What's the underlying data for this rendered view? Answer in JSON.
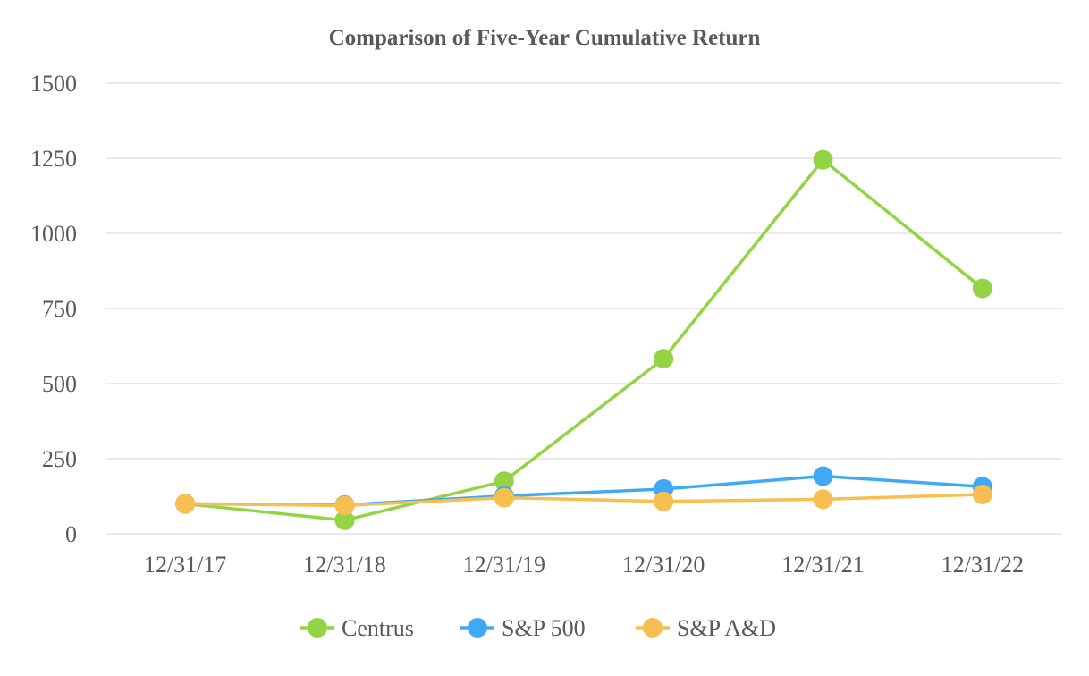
{
  "chart_data": {
    "type": "line",
    "title": "Comparison of Five-Year Cumulative Return",
    "xlabel": "",
    "ylabel": "",
    "categories": [
      "12/31/17",
      "12/31/18",
      "12/31/19",
      "12/31/20",
      "12/31/21",
      "12/31/22"
    ],
    "ylim": [
      0,
      1500
    ],
    "yticks": [
      "0",
      "250",
      "500",
      "750",
      "1000",
      "1250",
      "1500"
    ],
    "grid": true,
    "legend_position": "bottom",
    "series": [
      {
        "name": "Centrus",
        "color": "#92d444",
        "values": [
          100,
          45,
          175,
          583,
          1245,
          817
        ]
      },
      {
        "name": "S&P 500",
        "color": "#3fa9f5",
        "values": [
          100,
          96,
          126,
          149,
          192,
          157
        ]
      },
      {
        "name": "S&P A&D",
        "color": "#f6bf4f",
        "values": [
          100,
          94,
          120,
          108,
          115,
          131
        ]
      }
    ]
  }
}
